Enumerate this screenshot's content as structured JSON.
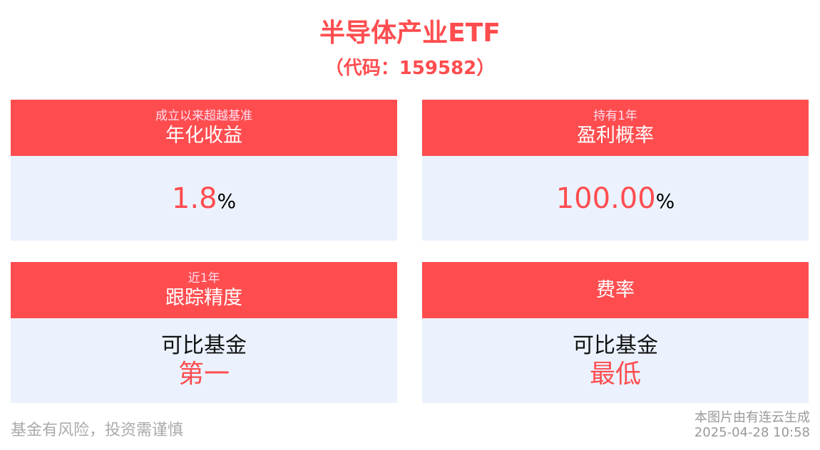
{
  "header": {
    "title": "半导体产业ETF",
    "code": "（代码：159582）"
  },
  "colors": {
    "accent": "#FF4D4F",
    "card_bg": "#EBF2FE"
  },
  "cards": [
    {
      "subtitle": "成立以来超越基准",
      "title": "年化收益",
      "value": "1.8",
      "unit": "%"
    },
    {
      "subtitle": "持有1年",
      "title": "盈利概率",
      "value": "100.00",
      "unit": "%"
    },
    {
      "subtitle": "近1年",
      "title": "跟踪精度",
      "line1": "可比基金",
      "line2": "第一"
    },
    {
      "title": "费率",
      "line1": "可比基金",
      "line2": "最低"
    }
  ],
  "footer": {
    "disclaimer": "基金有风险，投资需谨慎",
    "generated_by": "本图片由有连云生成",
    "timestamp": "2025-04-28 10:58"
  }
}
